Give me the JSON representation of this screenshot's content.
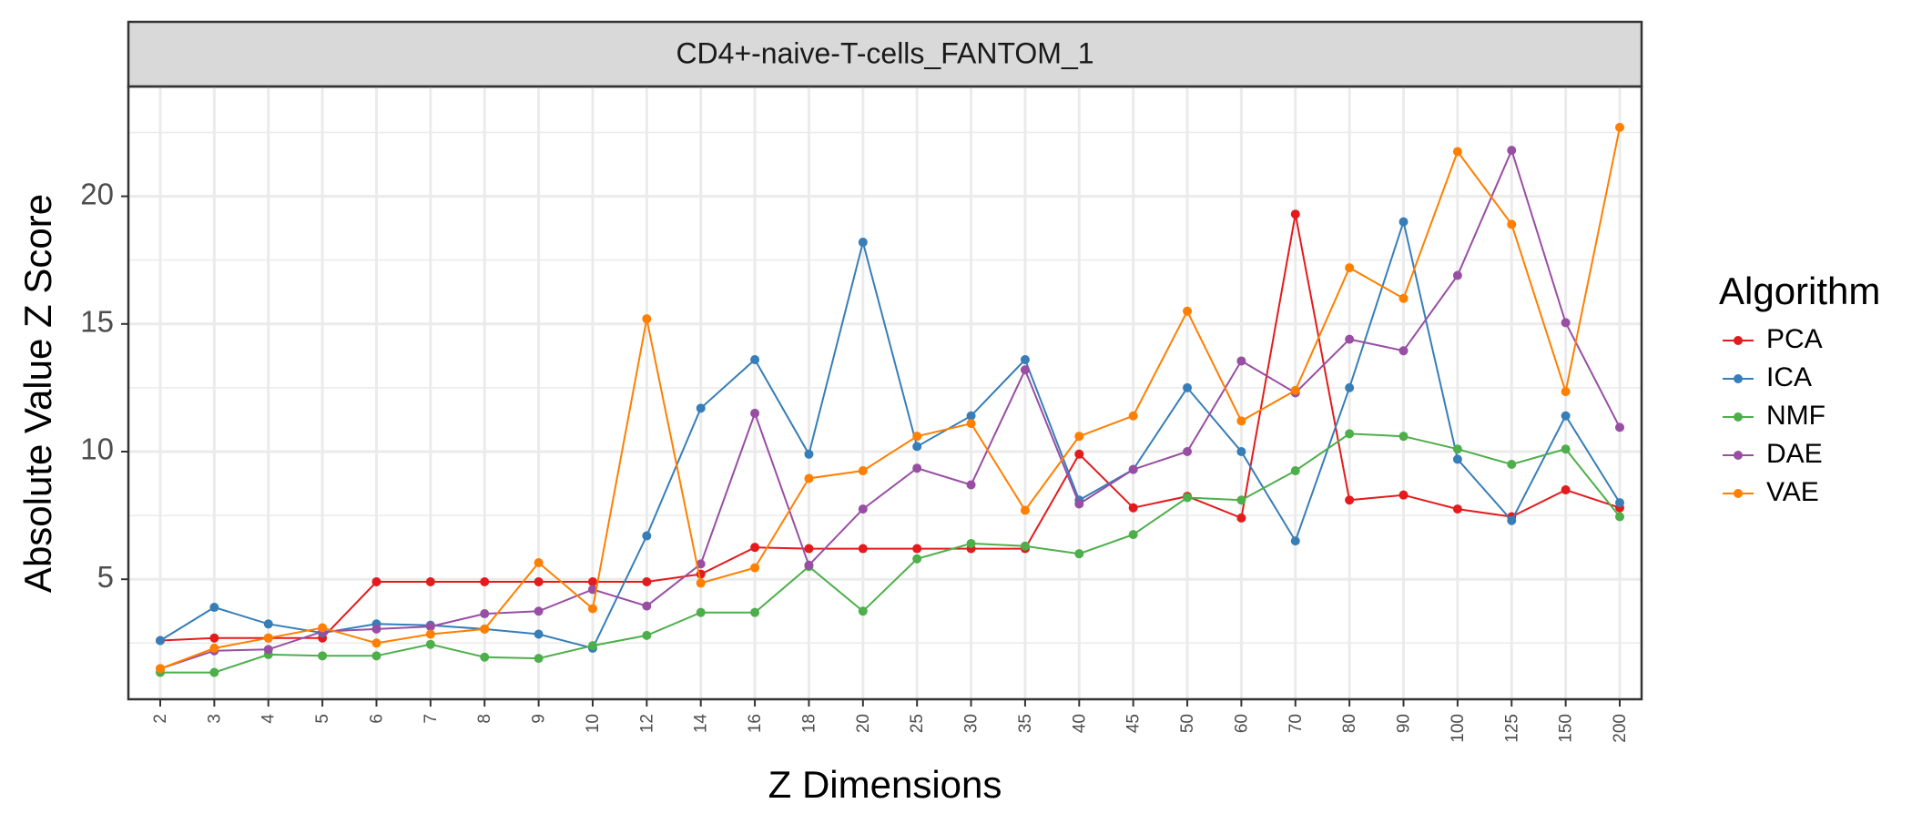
{
  "chart_data": {
    "type": "line",
    "facet_title": "CD4+-naive-T-cells_FANTOM_1",
    "xlabel": "Z Dimensions",
    "ylabel": "Absolute Value Z Score",
    "categories": [
      "2",
      "3",
      "4",
      "5",
      "6",
      "7",
      "8",
      "9",
      "10",
      "12",
      "14",
      "16",
      "18",
      "20",
      "25",
      "30",
      "35",
      "40",
      "45",
      "50",
      "60",
      "70",
      "80",
      "90",
      "100",
      "125",
      "150",
      "200"
    ],
    "y_ticks": [
      5,
      10,
      15,
      20
    ],
    "ylim": [
      0.3,
      24.3
    ],
    "grid": true,
    "legend": {
      "title": "Algorithm",
      "placement": "right"
    },
    "series": [
      {
        "name": "PCA",
        "color": "#E41A1C",
        "values": [
          2.6,
          2.7,
          2.7,
          2.7,
          4.9,
          4.9,
          4.9,
          4.9,
          4.9,
          4.9,
          5.2,
          6.25,
          6.2,
          6.2,
          6.2,
          6.2,
          6.2,
          9.9,
          7.8,
          8.25,
          7.4,
          19.3,
          8.1,
          8.3,
          7.75,
          7.45,
          8.5,
          7.8
        ]
      },
      {
        "name": "ICA",
        "color": "#377EB8",
        "values": [
          2.6,
          3.9,
          3.25,
          2.9,
          3.25,
          3.2,
          3.05,
          2.85,
          2.3,
          6.7,
          11.7,
          13.6,
          9.9,
          18.2,
          10.2,
          11.4,
          13.6,
          8.1,
          9.3,
          12.5,
          10.0,
          6.5,
          12.5,
          19.0,
          9.7,
          7.3,
          11.4,
          8.0
        ]
      },
      {
        "name": "NMF",
        "color": "#4DAF4A",
        "values": [
          1.35,
          1.35,
          2.05,
          2.0,
          2.0,
          2.45,
          1.95,
          1.9,
          2.4,
          2.8,
          3.7,
          3.7,
          5.5,
          3.75,
          5.8,
          6.4,
          6.3,
          6.0,
          6.75,
          8.2,
          8.1,
          9.25,
          10.7,
          10.6,
          10.1,
          9.5,
          10.1,
          7.45
        ]
      },
      {
        "name": "DAE",
        "color": "#984EA3",
        "values": [
          1.5,
          2.2,
          2.25,
          2.95,
          3.05,
          3.15,
          3.65,
          3.75,
          4.6,
          3.95,
          5.6,
          11.5,
          5.55,
          7.75,
          9.35,
          8.7,
          13.2,
          7.95,
          9.3,
          10.0,
          13.55,
          12.3,
          14.4,
          13.95,
          16.9,
          21.8,
          15.05,
          10.95
        ]
      },
      {
        "name": "VAE",
        "color": "#FF7F00",
        "values": [
          1.5,
          2.3,
          2.7,
          3.1,
          2.5,
          2.85,
          3.05,
          5.65,
          3.85,
          15.2,
          4.85,
          5.45,
          8.95,
          9.25,
          10.6,
          11.1,
          7.7,
          10.6,
          11.4,
          15.5,
          11.2,
          12.4,
          17.2,
          16.0,
          21.75,
          18.9,
          12.35,
          22.7
        ]
      }
    ]
  }
}
